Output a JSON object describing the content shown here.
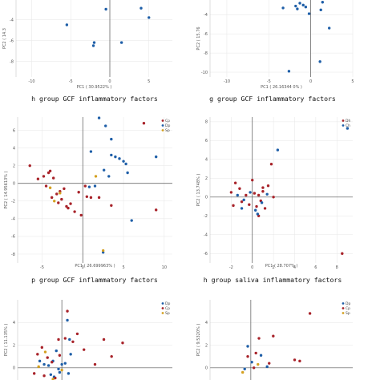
{
  "colors": {
    "red": "#a8232a",
    "blue": "#1f5fa8",
    "orange": "#d4a020",
    "axis": "#555555",
    "grid": "#e6e6e6"
  },
  "chart_data": [
    {
      "type": "scatter",
      "title": "h group GCF inflammatory factors",
      "xlabel": "PC1 ( 30.9522% )",
      "ylabel": "PC2 ( 14.3",
      "xlim": [
        -12,
        8
      ],
      "ylim": [
        -9.5,
        -1.5
      ],
      "xticks": [
        -10,
        -5,
        0,
        5
      ],
      "yticks": [
        -4,
        -6,
        -8
      ],
      "series": [
        {
          "color": "blue",
          "x": [
            -2.5,
            1.0,
            4.0,
            5.0,
            -0.5,
            -5.5,
            -2.0,
            -2.1,
            1.5
          ],
          "y": [
            -1.8,
            -1.8,
            -2.9,
            -3.8,
            -3.0,
            -4.5,
            -6.2,
            -6.5,
            -6.2
          ]
        }
      ]
    },
    {
      "type": "scatter",
      "title": "g group GCF inflammatory factors",
      "xlabel": "PC1 ( 26.16344 0% )",
      "ylabel": "PC2 ( 15.76",
      "xlim": [
        -12,
        5
      ],
      "ylim": [
        -10.5,
        -1.8
      ],
      "xticks": [
        -10,
        -5,
        0,
        5
      ],
      "yticks": [
        -2,
        -4,
        -6,
        -8,
        -10
      ],
      "series": [
        {
          "color": "blue",
          "x": [
            -3.3,
            -1.8,
            -1.6,
            -0.9,
            -0.6,
            -1.3,
            1.1,
            1.4,
            1.2,
            2.2,
            -0.2,
            1.1,
            -2.6
          ],
          "y": [
            -3.3,
            -3.1,
            -3.4,
            -3.0,
            -3.2,
            -2.8,
            -2.1,
            -2.7,
            -3.5,
            -5.4,
            -3.9,
            -8.9,
            -9.9
          ]
        }
      ]
    },
    {
      "type": "scatter",
      "title": "p group GCF inflammatory factors",
      "xlabel": "PC1 ( 26.699963% )",
      "ylabel": "PC2 ( 14.95613% )",
      "legend": [
        "Cp",
        "Dp",
        "Sp"
      ],
      "xlim": [
        -8,
        11
      ],
      "ylim": [
        -9,
        7.5
      ],
      "xticks": [
        -5,
        0,
        5,
        10
      ],
      "yticks": [
        6,
        4,
        2,
        0,
        -2,
        -4,
        -6,
        -8
      ],
      "series": [
        {
          "name": "Cp",
          "color": "red",
          "x": [
            -6.5,
            -5.5,
            -4.8,
            -4.5,
            -4.2,
            -4.0,
            -3.6,
            -3.2,
            -3.0,
            -2.6,
            -2.3,
            -2.0,
            -1.5,
            -1.0,
            -0.5,
            -0.2,
            0.3,
            0.5,
            1.0,
            3.5,
            7.5,
            9.0,
            -3.8,
            -2.8,
            -1.8,
            2.0
          ],
          "y": [
            2.0,
            0.5,
            0.8,
            -0.3,
            1.2,
            1.4,
            0.6,
            -1.2,
            -2.2,
            -1.8,
            -0.6,
            -2.6,
            -2.3,
            -3.2,
            -1.0,
            -3.6,
            -0.3,
            -1.5,
            -1.6,
            -2.5,
            6.8,
            -3.0,
            -1.6,
            -0.9,
            -2.8,
            -1.6
          ]
        },
        {
          "name": "Dp",
          "color": "blue",
          "x": [
            2.0,
            2.8,
            3.5,
            3.5,
            4.0,
            4.5,
            5.0,
            5.3,
            5.5,
            2.6,
            3.2,
            1.0,
            9.0,
            6.0,
            0.8,
            1.5,
            2.5
          ],
          "y": [
            7.4,
            6.5,
            5.0,
            3.2,
            3.0,
            2.8,
            2.5,
            2.2,
            1.2,
            1.5,
            0.8,
            3.6,
            3.0,
            -4.2,
            -0.4,
            -0.3,
            -7.8
          ]
        },
        {
          "name": "Sp",
          "color": "orange",
          "x": [
            -4.0,
            -3.5,
            1.6,
            2.5,
            -2.8
          ],
          "y": [
            -0.5,
            -2.0,
            0.8,
            -7.6,
            -1.1
          ]
        }
      ]
    },
    {
      "type": "scatter",
      "title": "h group saliva inflammatory factors",
      "xlabel": "PC1 ( 28.707% )",
      "ylabel": "PC2 ( 13.748% )",
      "legend": [
        "Dh",
        "Ch"
      ],
      "xlim": [
        -4,
        9.5
      ],
      "ylim": [
        -7,
        8.5
      ],
      "xticks": [
        -2,
        0,
        2,
        4,
        6,
        8
      ],
      "yticks": [
        8,
        6,
        4,
        2,
        0,
        -2,
        -4,
        -6
      ],
      "series": [
        {
          "name": "Dh",
          "color": "red",
          "x": [
            -2.0,
            -1.6,
            -1.2,
            -1.0,
            -0.6,
            -0.3,
            0.0,
            0.2,
            0.4,
            0.6,
            0.8,
            1.0,
            1.2,
            1.5,
            1.8,
            2.0,
            8.5,
            0.6,
            -1.8,
            1.0
          ],
          "y": [
            0.5,
            1.5,
            0.9,
            -0.5,
            0.2,
            -0.8,
            1.8,
            0.4,
            -1.0,
            0.2,
            -0.4,
            0.6,
            -1.2,
            1.2,
            3.5,
            0.0,
            -6.0,
            -2.0,
            -0.9,
            1.0
          ]
        },
        {
          "name": "Ch",
          "color": "blue",
          "x": [
            -1.4,
            -0.8,
            -0.2,
            0.3,
            0.9,
            1.4,
            2.4,
            -1.0,
            0.5,
            9.0
          ],
          "y": [
            0.2,
            -0.3,
            0.5,
            -1.4,
            -0.6,
            0.3,
            5.0,
            -1.2,
            -1.8,
            7.3
          ]
        }
      ]
    },
    {
      "type": "scatter",
      "title": "",
      "xlabel": "",
      "ylabel": "PC2 ( 11.135% )",
      "legend": [
        "Dp",
        "Cp",
        "Sp"
      ],
      "xlim": [
        -4,
        10
      ],
      "ylim": [
        -1.5,
        6
      ],
      "xticks": [],
      "yticks": [
        4,
        2,
        0
      ],
      "series": [
        {
          "name": "Dp",
          "color": "blue",
          "x": [
            0.5,
            0.7,
            0.8,
            -0.5,
            -0.8,
            -1.2,
            -1.6,
            -2.0,
            -0.3,
            0.3,
            0.6,
            -1.0,
            0.0,
            -0.2,
            -0.7
          ],
          "y": [
            4.2,
            2.5,
            1.2,
            1.5,
            0.6,
            0.2,
            0.3,
            0.6,
            -0.1,
            0.4,
            -0.5,
            -0.6,
            0.3,
            -0.4,
            -0.8
          ]
        },
        {
          "name": "Cp",
          "color": "red",
          "x": [
            0.5,
            -0.3,
            -2.2,
            -1.8,
            -1.3,
            -0.9,
            -0.2,
            0.3,
            1.0,
            2.0,
            3.8,
            4.5,
            5.5,
            3.0,
            1.4,
            -2.5,
            -1.6,
            -0.6
          ],
          "y": [
            5.0,
            2.5,
            1.2,
            1.8,
            0.9,
            0.5,
            1.1,
            2.6,
            2.3,
            1.6,
            2.5,
            1.0,
            2.2,
            0.3,
            3.0,
            -0.5,
            -0.7,
            -0.9
          ]
        },
        {
          "name": "Sp",
          "color": "orange",
          "x": [
            -1.5,
            0.0,
            -2.1,
            -0.8
          ],
          "y": [
            1.4,
            -0.2,
            0.1,
            -1.0
          ]
        }
      ]
    },
    {
      "type": "scatter",
      "title": "",
      "xlabel": "",
      "ylabel": "PC2 ( 9.5320% )",
      "legend": [
        "Dp",
        "Cp",
        "Sp"
      ],
      "xlim": [
        -4,
        10
      ],
      "ylim": [
        -1.5,
        6
      ],
      "xticks": [],
      "yticks": [
        4,
        2,
        0
      ],
      "series": [
        {
          "name": "Cp",
          "color": "red",
          "x": [
            0.3,
            1.8,
            4.3,
            4.8,
            0.8,
            -0.3,
            0.5,
            2.2,
            5.8
          ],
          "y": [
            0.0,
            0.4,
            0.7,
            0.6,
            2.6,
            1.0,
            1.3,
            2.8,
            4.8
          ]
        },
        {
          "name": "Dp",
          "color": "blue",
          "x": [
            -0.6,
            0.1,
            1.0,
            1.6,
            -0.3
          ],
          "y": [
            -0.1,
            0.5,
            1.1,
            0.1,
            1.9
          ]
        },
        {
          "name": "Sp",
          "color": "orange",
          "x": [
            -0.8,
            0.7
          ],
          "y": [
            -0.4,
            0.3
          ]
        }
      ]
    }
  ]
}
